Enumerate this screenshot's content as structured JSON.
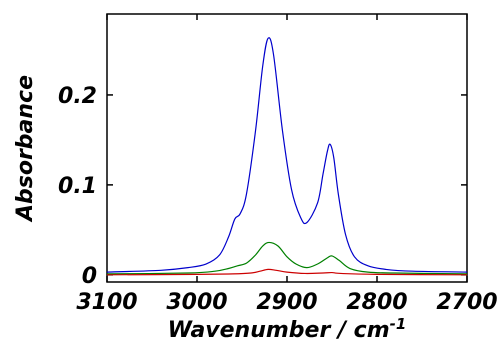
{
  "chart_data": {
    "type": "line",
    "xlabel": "Wavenumber / cm",
    "xlabel_superscript": "-1",
    "ylabel": "Absorbance",
    "xlim": [
      3100,
      2700
    ],
    "ylim": [
      -0.008,
      0.29
    ],
    "x_reversed": true,
    "x_ticks": [
      3100,
      3000,
      2900,
      2800,
      2700
    ],
    "x_tick_labels": [
      "3100",
      "3000",
      "2900",
      "2800",
      "2700"
    ],
    "y_ticks": [
      0,
      0.1,
      0.2
    ],
    "y_tick_labels": [
      "0",
      "0.1",
      "0.2"
    ],
    "grid": false,
    "legend": "none",
    "series": [
      {
        "color": "#0000cc",
        "x": [
          3100,
          3040,
          3010,
          2990,
          2975,
          2965,
          2958,
          2952,
          2945,
          2935,
          2927,
          2921,
          2915,
          2905,
          2895,
          2885,
          2878,
          2866,
          2860,
          2855,
          2852,
          2848,
          2843,
          2835,
          2825,
          2810,
          2790,
          2760,
          2700
        ],
        "y": [
          0.003,
          0.005,
          0.008,
          0.012,
          0.022,
          0.042,
          0.062,
          0.068,
          0.09,
          0.16,
          0.232,
          0.263,
          0.245,
          0.16,
          0.095,
          0.064,
          0.058,
          0.08,
          0.112,
          0.138,
          0.145,
          0.13,
          0.09,
          0.045,
          0.02,
          0.01,
          0.006,
          0.004,
          0.003
        ]
      },
      {
        "color": "#008000",
        "x": [
          3100,
          3010,
          2980,
          2965,
          2955,
          2945,
          2935,
          2927,
          2920,
          2910,
          2900,
          2890,
          2878,
          2866,
          2855,
          2850,
          2842,
          2830,
          2810,
          2780,
          2700
        ],
        "y": [
          0.001,
          0.002,
          0.004,
          0.007,
          0.01,
          0.013,
          0.022,
          0.032,
          0.036,
          0.032,
          0.02,
          0.012,
          0.008,
          0.012,
          0.019,
          0.021,
          0.016,
          0.007,
          0.003,
          0.002,
          0.001
        ]
      },
      {
        "color": "#cc0000",
        "x": [
          3100,
          3000,
          2960,
          2940,
          2930,
          2921,
          2912,
          2900,
          2880,
          2860,
          2850,
          2840,
          2800,
          2700
        ],
        "y": [
          0.0,
          0.0005,
          0.001,
          0.002,
          0.004,
          0.006,
          0.005,
          0.003,
          0.0015,
          0.002,
          0.0025,
          0.0015,
          0.0005,
          0.0
        ]
      }
    ]
  }
}
